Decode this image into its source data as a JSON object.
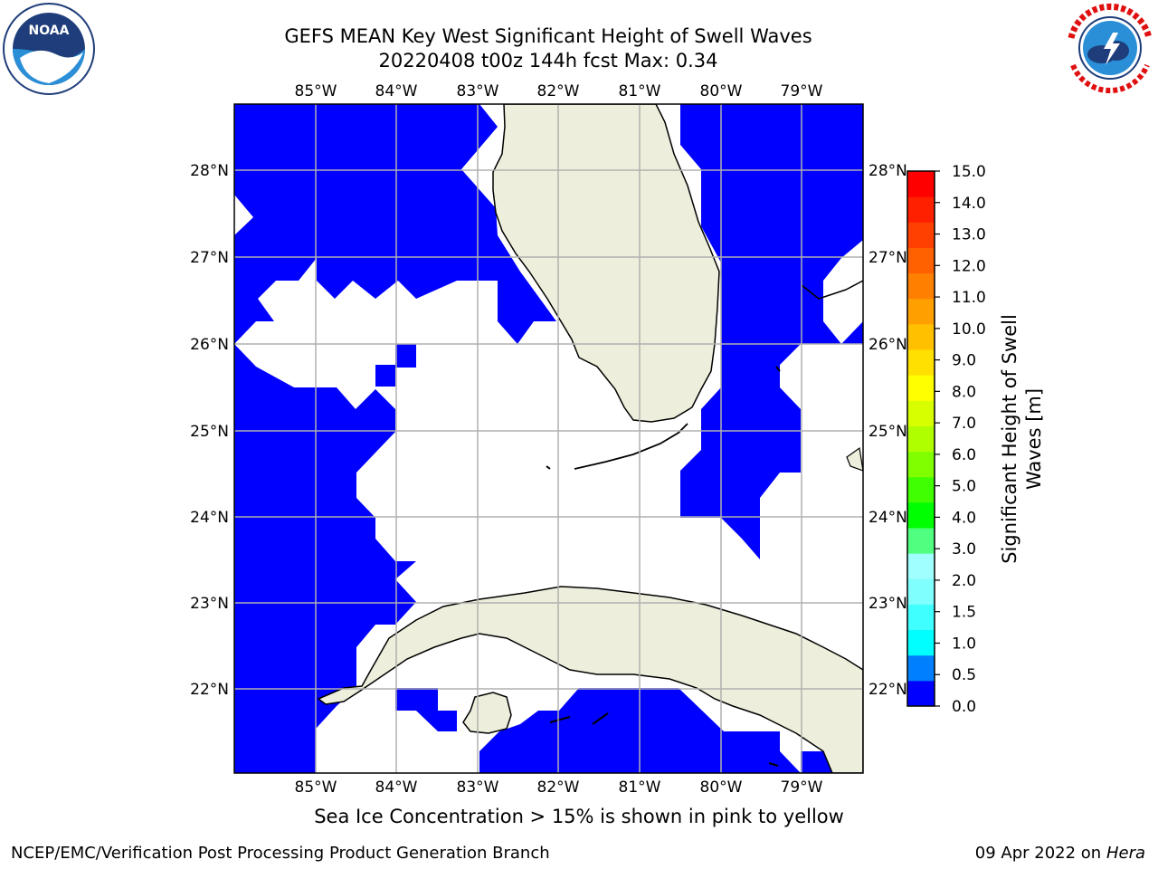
{
  "header": {
    "title_line1": "GEFS MEAN Key West Significant Height of Swell Waves",
    "title_line2": "20220408 t00z 144h fcst   Max: 0.34"
  },
  "logos": {
    "left_icon": "noaa-logo",
    "right_icon": "nws-logo"
  },
  "map": {
    "lon_labels": [
      "85°W",
      "84°W",
      "83°W",
      "82°W",
      "81°W",
      "80°W",
      "79°W"
    ],
    "lat_labels_left": [
      "28°N",
      "27°N",
      "26°N",
      "25°N",
      "24°N",
      "23°N",
      "22°N"
    ],
    "lat_labels_right": [
      "28°N",
      "27°N",
      "26°N",
      "25°N",
      "24°N",
      "23°N",
      "22°N"
    ],
    "colors": {
      "ocean_wave": "#0000ff",
      "land": "#eeeedc",
      "grid": "#b0b0b0",
      "missing": "#ffffff"
    }
  },
  "colorbar": {
    "label": "Significant Height of Swell Waves [m]",
    "label_line1": "Significant Height of Swell",
    "label_line2": "Waves [m]",
    "ticks": [
      "15.0",
      "14.0",
      "13.0",
      "12.0",
      "11.0",
      "10.0",
      "9.0",
      "8.0",
      "7.0",
      "6.0",
      "5.0",
      "4.0",
      "3.0",
      "2.0",
      "1.5",
      "1.0",
      "0.5",
      "0.0"
    ],
    "colors": [
      "#0000ff",
      "#0080ff",
      "#00ffff",
      "#40ffff",
      "#80ffff",
      "#a0ffff",
      "#50ff80",
      "#00ff00",
      "#40ff00",
      "#80ff00",
      "#b0ff00",
      "#d8ff00",
      "#ffff00",
      "#ffe000",
      "#ffc000",
      "#ffa000",
      "#ff8000",
      "#ff6000",
      "#ff4000",
      "#ff2000",
      "#ff0000"
    ]
  },
  "caption": "Sea Ice Concentration > 15% is shown in pink to yellow",
  "footer": {
    "left": "NCEP/EMC/Verification Post Processing Product Generation Branch",
    "date": "09 Apr 2022 on ",
    "machine": "Hera"
  }
}
